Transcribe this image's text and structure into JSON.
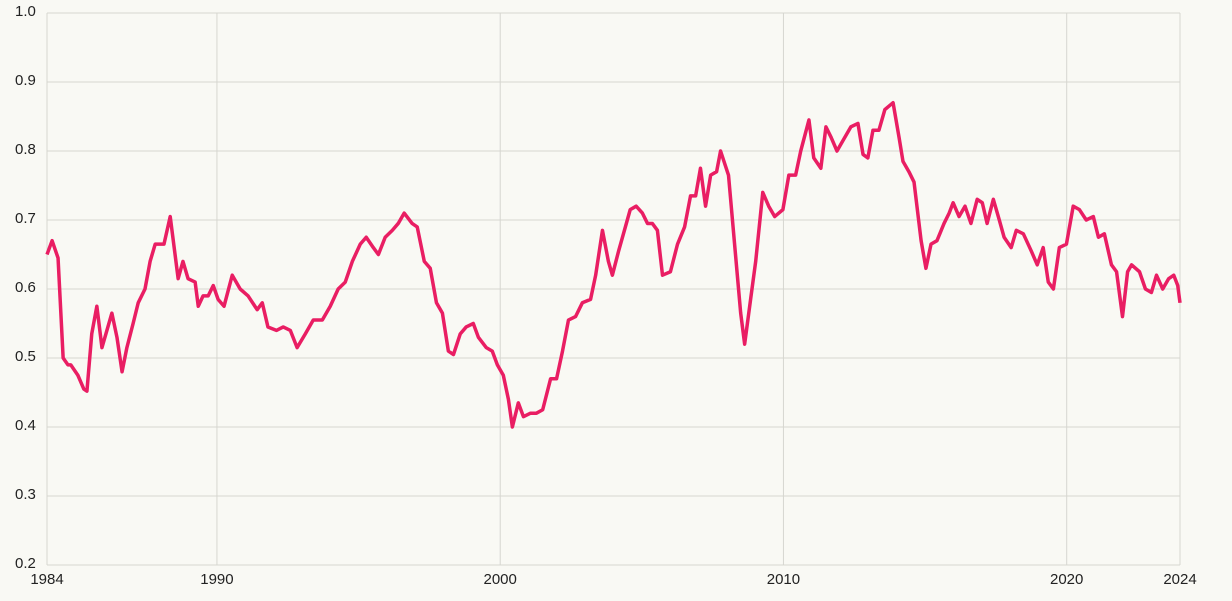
{
  "chart_data": {
    "type": "line",
    "x": [
      1984.0,
      1984.18,
      1984.39,
      1984.57,
      1984.74,
      1984.84,
      1985.09,
      1985.3,
      1985.41,
      1985.58,
      1985.76,
      1985.94,
      1986.08,
      1986.29,
      1986.47,
      1986.65,
      1986.82,
      1987.04,
      1987.22,
      1987.46,
      1987.64,
      1987.82,
      1988.13,
      1988.35,
      1988.49,
      1988.63,
      1988.8,
      1988.98,
      1989.23,
      1989.34,
      1989.51,
      1989.69,
      1989.87,
      1990.04,
      1990.25,
      1990.54,
      1990.82,
      1991.1,
      1991.42,
      1991.6,
      1991.8,
      1992.1,
      1992.34,
      1992.59,
      1992.83,
      1993.12,
      1993.4,
      1993.72,
      1994.0,
      1994.28,
      1994.53,
      1994.78,
      1995.06,
      1995.27,
      1995.52,
      1995.7,
      1995.94,
      1996.19,
      1996.4,
      1996.61,
      1996.89,
      1997.07,
      1997.32,
      1997.53,
      1997.75,
      1997.96,
      1998.17,
      1998.35,
      1998.59,
      1998.8,
      1999.05,
      1999.23,
      1999.51,
      1999.72,
      1999.9,
      2000.11,
      2000.29,
      2000.43,
      2000.64,
      2000.82,
      2001.07,
      2001.28,
      2001.5,
      2001.78,
      2001.99,
      2002.2,
      2002.41,
      2002.66,
      2002.9,
      2003.19,
      2003.37,
      2003.61,
      2003.82,
      2003.96,
      2004.18,
      2004.42,
      2004.59,
      2004.8,
      2005.02,
      2005.2,
      2005.37,
      2005.55,
      2005.73,
      2006.01,
      2006.26,
      2006.51,
      2006.72,
      2006.9,
      2007.07,
      2007.25,
      2007.43,
      2007.64,
      2007.78,
      2008.06,
      2008.35,
      2008.49,
      2008.63,
      2008.84,
      2009.02,
      2009.27,
      2009.48,
      2009.69,
      2009.98,
      2010.19,
      2010.43,
      2010.61,
      2010.9,
      2011.07,
      2011.32,
      2011.5,
      2011.68,
      2011.89,
      2012.1,
      2012.38,
      2012.63,
      2012.81,
      2012.98,
      2013.16,
      2013.37,
      2013.58,
      2013.87,
      2014.08,
      2014.22,
      2014.43,
      2014.61,
      2014.86,
      2015.03,
      2015.21,
      2015.42,
      2015.67,
      2015.85,
      2015.99,
      2016.2,
      2016.41,
      2016.62,
      2016.84,
      2017.02,
      2017.19,
      2017.41,
      2017.62,
      2017.79,
      2018.04,
      2018.22,
      2018.47,
      2018.75,
      2018.96,
      2019.17,
      2019.35,
      2019.53,
      2019.74,
      2019.99,
      2020.23,
      2020.45,
      2020.69,
      2020.94,
      2021.12,
      2021.33,
      2021.58,
      2021.76,
      2021.97,
      2022.15,
      2022.29,
      2022.57,
      2022.78,
      2022.99,
      2023.17,
      2023.39,
      2023.6,
      2023.78,
      2023.92,
      2024.0
    ],
    "series": [
      {
        "color": "#e91e63",
        "values": [
          0.65,
          0.67,
          0.645,
          0.5,
          0.49,
          0.49,
          0.475,
          0.455,
          0.452,
          0.535,
          0.575,
          0.515,
          0.535,
          0.565,
          0.53,
          0.48,
          0.515,
          0.55,
          0.58,
          0.6,
          0.64,
          0.665,
          0.665,
          0.705,
          0.66,
          0.615,
          0.64,
          0.615,
          0.61,
          0.575,
          0.59,
          0.59,
          0.605,
          0.585,
          0.575,
          0.62,
          0.6,
          0.59,
          0.57,
          0.58,
          0.545,
          0.54,
          0.545,
          0.54,
          0.515,
          0.535,
          0.555,
          0.555,
          0.575,
          0.6,
          0.61,
          0.64,
          0.665,
          0.675,
          0.66,
          0.65,
          0.675,
          0.685,
          0.695,
          0.71,
          0.695,
          0.69,
          0.64,
          0.63,
          0.58,
          0.565,
          0.51,
          0.505,
          0.535,
          0.545,
          0.55,
          0.53,
          0.515,
          0.51,
          0.49,
          0.475,
          0.44,
          0.4,
          0.435,
          0.415,
          0.42,
          0.42,
          0.425,
          0.47,
          0.47,
          0.51,
          0.555,
          0.56,
          0.58,
          0.585,
          0.62,
          0.685,
          0.64,
          0.62,
          0.655,
          0.69,
          0.715,
          0.72,
          0.71,
          0.695,
          0.695,
          0.685,
          0.62,
          0.625,
          0.665,
          0.69,
          0.735,
          0.735,
          0.775,
          0.72,
          0.765,
          0.77,
          0.8,
          0.765,
          0.63,
          0.565,
          0.52,
          0.585,
          0.64,
          0.74,
          0.72,
          0.705,
          0.715,
          0.765,
          0.765,
          0.8,
          0.845,
          0.79,
          0.775,
          0.835,
          0.82,
          0.8,
          0.815,
          0.835,
          0.84,
          0.795,
          0.79,
          0.83,
          0.83,
          0.86,
          0.87,
          0.82,
          0.785,
          0.77,
          0.755,
          0.67,
          0.63,
          0.665,
          0.67,
          0.695,
          0.71,
          0.725,
          0.705,
          0.72,
          0.695,
          0.73,
          0.725,
          0.695,
          0.73,
          0.7,
          0.675,
          0.66,
          0.685,
          0.68,
          0.655,
          0.635,
          0.66,
          0.61,
          0.6,
          0.66,
          0.665,
          0.72,
          0.715,
          0.7,
          0.705,
          0.675,
          0.68,
          0.635,
          0.625,
          0.56,
          0.625,
          0.635,
          0.625,
          0.6,
          0.595,
          0.62,
          0.6,
          0.615,
          0.62,
          0.605,
          0.58
        ]
      }
    ],
    "xlim": [
      1984,
      2024
    ],
    "xticks": [
      1984,
      1990,
      2000,
      2010,
      2020,
      2024
    ],
    "ylim": [
      0.2,
      1
    ],
    "yticks": [
      0.2,
      0.3,
      0.4,
      0.5,
      0.6,
      0.7,
      0.8,
      0.9,
      {
        "value": 1,
        "label": "1.0"
      }
    ],
    "grid": true
  }
}
